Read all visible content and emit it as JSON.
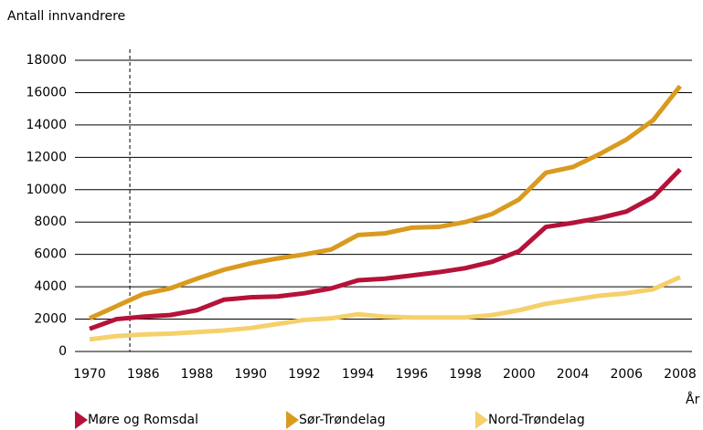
{
  "chart_data": {
    "type": "line",
    "y_label": "Antall innvandrere",
    "x_label": "År",
    "categories": [
      "1970",
      null,
      "1986",
      null,
      "1988",
      null,
      "1990",
      null,
      "1992",
      null,
      "1994",
      null,
      "1996",
      null,
      "1998",
      null,
      "2000",
      null,
      "2004",
      null,
      "2006",
      null,
      "2008"
    ],
    "series": [
      {
        "name": "Møre og Romsdal",
        "color": "#b5123a",
        "values": [
          1400,
          2000,
          2150,
          2250,
          2550,
          3200,
          3350,
          3400,
          3600,
          3900,
          4400,
          4500,
          4700,
          4900,
          5150,
          5550,
          6200,
          7700,
          7950,
          8250,
          8650,
          9550,
          11250
        ]
      },
      {
        "name": "Sør-Trøndelag",
        "color": "#d99a1e",
        "values": [
          2050,
          2800,
          3550,
          3900,
          4500,
          5050,
          5450,
          5750,
          6000,
          6300,
          7200,
          7300,
          7650,
          7700,
          8000,
          8500,
          9400,
          11050,
          11400,
          12200,
          13100,
          14300,
          16400
        ]
      },
      {
        "name": "Nord-Trøndelag",
        "color": "#f5d06b",
        "values": [
          750,
          950,
          1050,
          1100,
          1200,
          1300,
          1450,
          1700,
          1950,
          2050,
          2300,
          2150,
          2100,
          2100,
          2100,
          2250,
          2550,
          2950,
          3200,
          3450,
          3600,
          3850,
          4600
        ]
      }
    ],
    "ylim": [
      0,
      18000
    ],
    "yticks": [
      0,
      2000,
      4000,
      6000,
      8000,
      10000,
      12000,
      14000,
      16000,
      18000
    ],
    "grid": true
  }
}
